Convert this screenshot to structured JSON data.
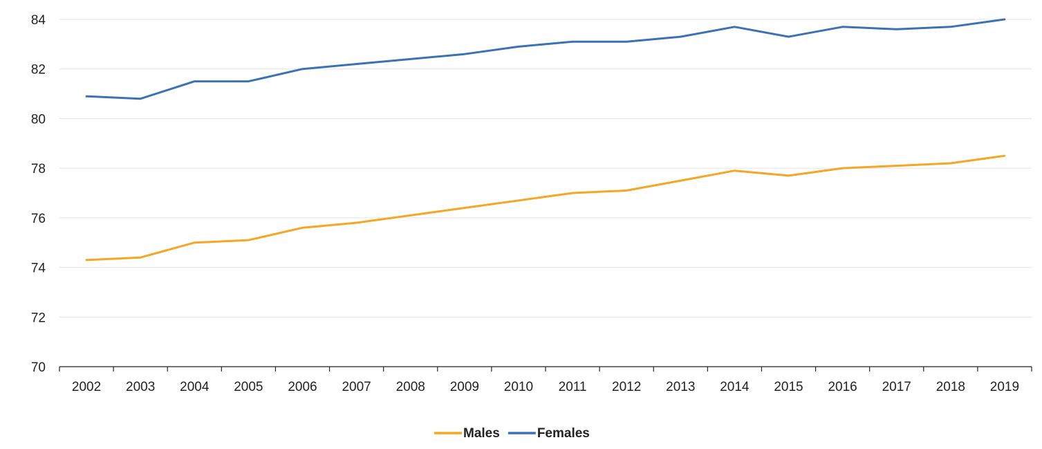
{
  "chart_data": {
    "type": "line",
    "x": [
      "2002",
      "2003",
      "2004",
      "2005",
      "2006",
      "2007",
      "2008",
      "2009",
      "2010",
      "2011",
      "2012",
      "2013",
      "2014",
      "2015",
      "2016",
      "2017",
      "2018",
      "2019"
    ],
    "series": [
      {
        "name": "Males",
        "color": "#f5a623",
        "values": [
          74.3,
          74.4,
          75.0,
          75.1,
          75.6,
          75.8,
          76.1,
          76.4,
          76.7,
          77.0,
          77.1,
          77.5,
          77.9,
          77.7,
          78.0,
          78.1,
          78.2,
          78.5
        ]
      },
      {
        "name": "Females",
        "color": "#3a72b5",
        "values": [
          80.9,
          80.8,
          81.5,
          81.5,
          82.0,
          82.2,
          82.4,
          82.6,
          82.9,
          83.1,
          83.1,
          83.3,
          83.7,
          83.3,
          83.7,
          83.6,
          83.7,
          84.0
        ]
      }
    ],
    "yticks": [
      "70",
      "72",
      "74",
      "76",
      "78",
      "80",
      "82",
      "84"
    ],
    "ylim": [
      70,
      84
    ],
    "grid": true,
    "legend_position": "bottom-center",
    "title": "",
    "xlabel": "",
    "ylabel": ""
  }
}
